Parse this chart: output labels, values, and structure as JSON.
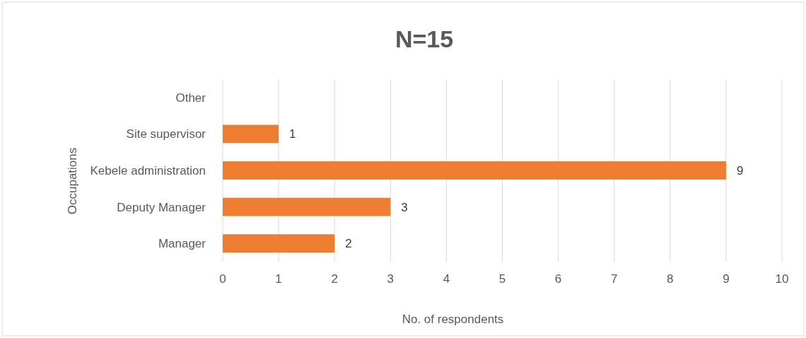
{
  "chart_data": {
    "type": "bar",
    "orientation": "horizontal",
    "title": "N=15",
    "xlabel": "No. of respondents",
    "ylabel": "Occupations",
    "categories": [
      "Other",
      "Site supervisor",
      "Kebele administration",
      "Deputy Manager",
      "Manager"
    ],
    "values": [
      0,
      1,
      9,
      3,
      2
    ],
    "value_labels": [
      null,
      "1",
      "9",
      "3",
      "2"
    ],
    "color": "#ed7d31",
    "xlim": [
      0,
      10
    ],
    "xticks": [
      0,
      1,
      2,
      3,
      4,
      5,
      6,
      7,
      8,
      9,
      10
    ],
    "grid": "x"
  }
}
